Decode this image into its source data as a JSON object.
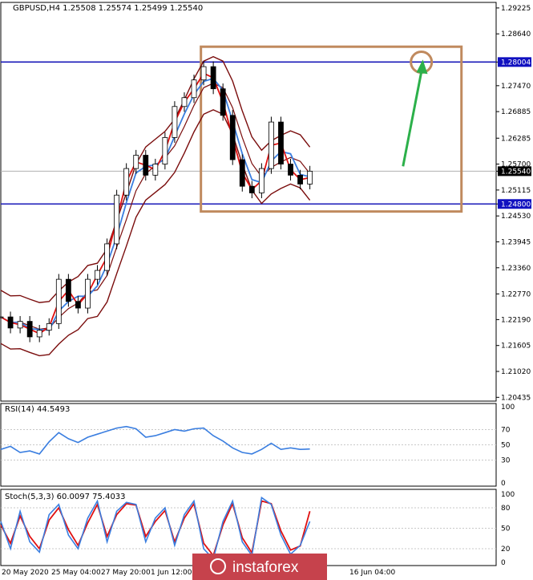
{
  "chart_data": {
    "type": "line",
    "header": "GBPUSD,H4  1.25508 1.25574 1.25499 1.25540",
    "price_ticks": [
      "1.29225",
      "1.28640",
      "1.28004",
      "1.27470",
      "1.26885",
      "1.26285",
      "1.25700",
      "1.25540",
      "1.25115",
      "1.24800",
      "1.24530",
      "1.23945",
      "1.23360",
      "1.22770",
      "1.22190",
      "1.21605",
      "1.21020",
      "1.20435"
    ],
    "y_range": [
      1.2035,
      1.2935
    ],
    "current_price": "1.25540",
    "levels": [
      {
        "label": "1.28004",
        "price": 1.28004
      },
      {
        "label": "1.24800",
        "price": 1.248
      }
    ],
    "box": {
      "x_start": 0.404,
      "x_end": 0.93,
      "price_top": 1.2835,
      "price_bottom": 1.2463
    },
    "target": {
      "x": 0.849,
      "price": 1.28
    },
    "arrow": {
      "from_x": 0.812,
      "from_price": 1.2565,
      "to_x": 0.852,
      "to_price": 1.2795
    },
    "time_labels": [
      "20 May 2020",
      "25 May 04:00",
      "27 May 20:00",
      "1 Jun 12:00",
      "16 Jun 04:00"
    ],
    "price_series": {
      "name": "close",
      "x": [
        0,
        0.025,
        0.05,
        0.075,
        0.1,
        0.125,
        0.15,
        0.175,
        0.2,
        0.225,
        0.25,
        0.275,
        0.3,
        0.325,
        0.35,
        0.375,
        0.4,
        0.425,
        0.45,
        0.475,
        0.5,
        0.525,
        0.55,
        0.575,
        0.6,
        0.625,
        0.65,
        0.675,
        0.7,
        0.725,
        0.75,
        0.775,
        0.8
      ],
      "values": [
        1.2225,
        1.22,
        1.2215,
        1.218,
        1.2195,
        1.221,
        1.231,
        1.226,
        1.2245,
        1.231,
        1.233,
        1.239,
        1.25,
        1.256,
        1.259,
        1.2545,
        1.257,
        1.263,
        1.27,
        1.272,
        1.276,
        1.279,
        1.274,
        1.268,
        1.258,
        1.252,
        1.2505,
        1.256,
        1.2665,
        1.257,
        1.2545,
        1.2525,
        1.2554
      ]
    },
    "rsi": {
      "label": "RSI(14) 44.5493",
      "ticks": [
        "100",
        "70",
        "50",
        "30",
        "0"
      ],
      "values": [
        44,
        48,
        40,
        42,
        38,
        54,
        66,
        58,
        53,
        60,
        64,
        68,
        72,
        74,
        71,
        60,
        62,
        66,
        70,
        68,
        71,
        72,
        62,
        55,
        46,
        40,
        38,
        44,
        52,
        44,
        46,
        44,
        44.5
      ]
    },
    "stoch": {
      "label": "Stoch(5,3,3) 60.0097 75.4033",
      "ticks": [
        "100",
        "80",
        "50",
        "20",
        "0"
      ],
      "main": [
        60,
        20,
        75,
        30,
        15,
        70,
        85,
        40,
        20,
        65,
        90,
        30,
        75,
        88,
        85,
        30,
        65,
        80,
        25,
        70,
        90,
        20,
        5,
        60,
        90,
        30,
        10,
        95,
        85,
        40,
        12,
        25,
        60
      ],
      "signal": [
        55,
        28,
        68,
        38,
        20,
        62,
        80,
        48,
        25,
        58,
        85,
        38,
        70,
        86,
        84,
        38,
        60,
        76,
        30,
        65,
        86,
        28,
        10,
        55,
        86,
        36,
        14,
        90,
        86,
        46,
        18,
        24,
        75
      ]
    }
  },
  "watermark": "instaforex"
}
